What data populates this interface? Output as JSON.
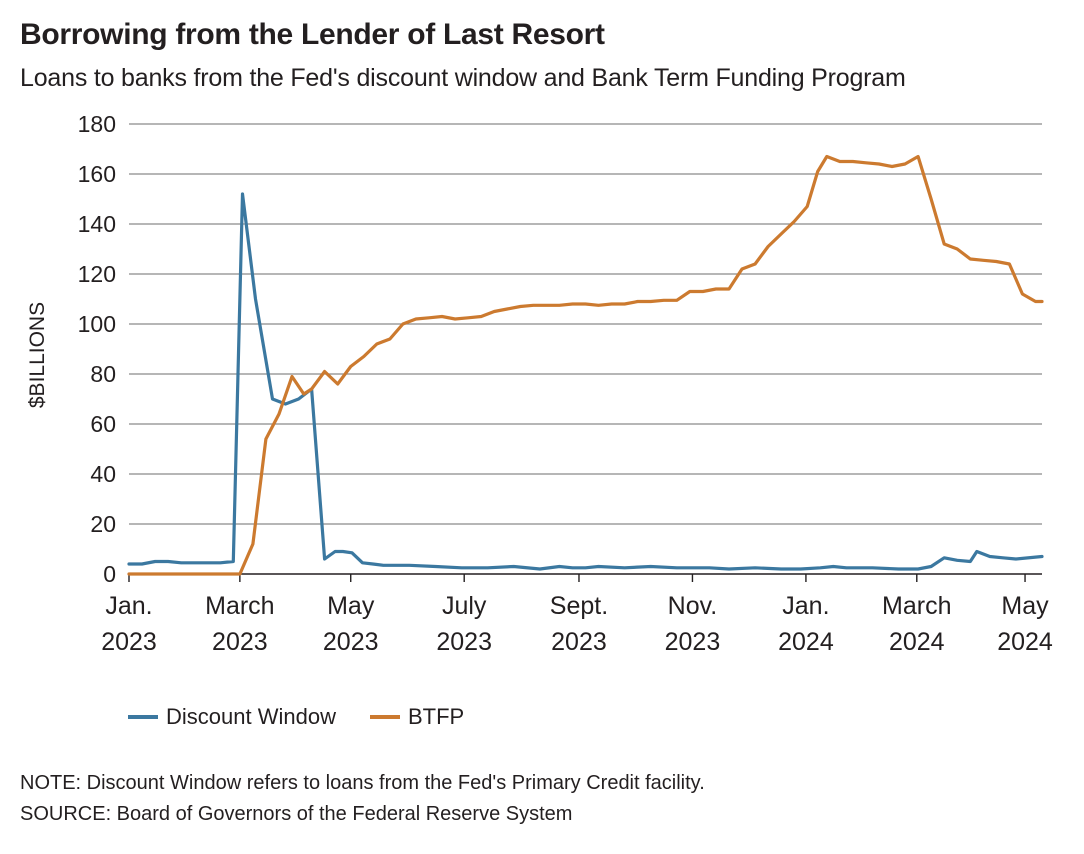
{
  "title": "Borrowing from the Lender of Last Resort",
  "subtitle": "Loans to banks from the Fed's discount window and Bank Term Funding Program",
  "footer": {
    "note": "NOTE: Discount Window refers to loans from the Fed's Primary Credit facility.",
    "source": "SOURCE: Board of Governors of the Federal Reserve System"
  },
  "colors": {
    "discount": "#3b78a0",
    "btfp": "#cc7a2f",
    "grid": "#8a8a8a"
  },
  "chart_data": {
    "type": "line",
    "title": "Borrowing from the Lender of Last Resort",
    "xlabel": "",
    "ylabel": "$BILLIONS",
    "ylim": [
      0,
      180
    ],
    "yticks": [
      "0",
      "20",
      "40",
      "60",
      "80",
      "100",
      "120",
      "140",
      "160",
      "180"
    ],
    "xlim": [
      0,
      70
    ],
    "xticks": [
      {
        "x": 0,
        "line1": "Jan.",
        "line2": "2023"
      },
      {
        "x": 8.5,
        "line1": "March",
        "line2": "2023"
      },
      {
        "x": 17,
        "line1": "May",
        "line2": "2023"
      },
      {
        "x": 25.7,
        "line1": "July",
        "line2": "2023"
      },
      {
        "x": 34.5,
        "line1": "Sept.",
        "line2": "2023"
      },
      {
        "x": 43.2,
        "line1": "Nov.",
        "line2": "2023"
      },
      {
        "x": 51.9,
        "line1": "Jan.",
        "line2": "2024"
      },
      {
        "x": 60.4,
        "line1": "March",
        "line2": "2024"
      },
      {
        "x": 68.7,
        "line1": "May",
        "line2": "2024"
      }
    ],
    "grid": true,
    "legend_position": "bottom-left",
    "series": [
      {
        "name": "Discount Window",
        "color": "#3b78a0",
        "x": [
          0,
          1,
          2,
          3,
          4,
          5,
          6,
          7,
          8,
          8.7,
          9.7,
          11,
          12,
          13,
          14,
          15,
          15.8,
          16.4,
          17.1,
          17.9,
          18.7,
          19.5,
          20.5,
          21.5,
          23.5,
          25.5,
          27.5,
          29.5,
          31.5,
          33,
          34,
          35,
          36,
          38,
          40,
          42,
          43,
          44.5,
          46,
          48,
          50,
          51.5,
          53,
          54,
          55,
          57,
          59,
          60.5,
          61.5,
          62.5,
          63.5,
          64.5,
          65,
          66,
          67,
          68,
          70
        ],
        "values": [
          4,
          4,
          5,
          5,
          4.5,
          4.5,
          4.5,
          4.5,
          5,
          152,
          110,
          70,
          68,
          70,
          74,
          6,
          9,
          9,
          8.5,
          4.5,
          4,
          3.5,
          3.5,
          3.5,
          3,
          2.5,
          2.5,
          3,
          2,
          3,
          2.5,
          2.5,
          3,
          2.5,
          3,
          2.5,
          2.5,
          2.5,
          2,
          2.5,
          2,
          2,
          2.5,
          3,
          2.5,
          2.5,
          2,
          2,
          3,
          6.5,
          5.5,
          5,
          9,
          7,
          6.5,
          6,
          7
        ]
      },
      {
        "name": "BTFP",
        "color": "#cc7a2f",
        "x": [
          0,
          8.5,
          9.5,
          10.5,
          11.5,
          12.5,
          13.4,
          14,
          15,
          16,
          17,
          18,
          19,
          20,
          21,
          22,
          23,
          24,
          25,
          26,
          27,
          28,
          29,
          30,
          31,
          32,
          33,
          34,
          35,
          36,
          37,
          38,
          39,
          40,
          41,
          42,
          43,
          44,
          45,
          46,
          47,
          48,
          49,
          50,
          51,
          52,
          52.8,
          53.5,
          54.5,
          55.5,
          56.5,
          57.5,
          58.5,
          59.5,
          60.5,
          61.5,
          62.5,
          63.5,
          64.5,
          65.5,
          66.5,
          67.5,
          68.5,
          69.5,
          70
        ],
        "values": [
          0,
          0,
          12,
          54,
          64,
          79,
          72,
          74,
          81,
          76,
          83,
          87,
          92,
          94,
          100,
          102,
          102.5,
          103,
          102,
          102.5,
          103,
          105,
          106,
          107,
          107.5,
          107.5,
          107.5,
          108,
          108,
          107.5,
          108,
          108,
          109,
          109,
          109.5,
          109.5,
          113,
          113,
          114,
          114,
          122,
          124,
          131,
          136,
          141,
          147,
          161,
          167,
          165,
          165,
          164.5,
          164,
          163,
          164,
          167,
          150,
          132,
          130,
          126,
          125.5,
          125,
          124,
          112,
          109,
          109
        ]
      }
    ]
  }
}
